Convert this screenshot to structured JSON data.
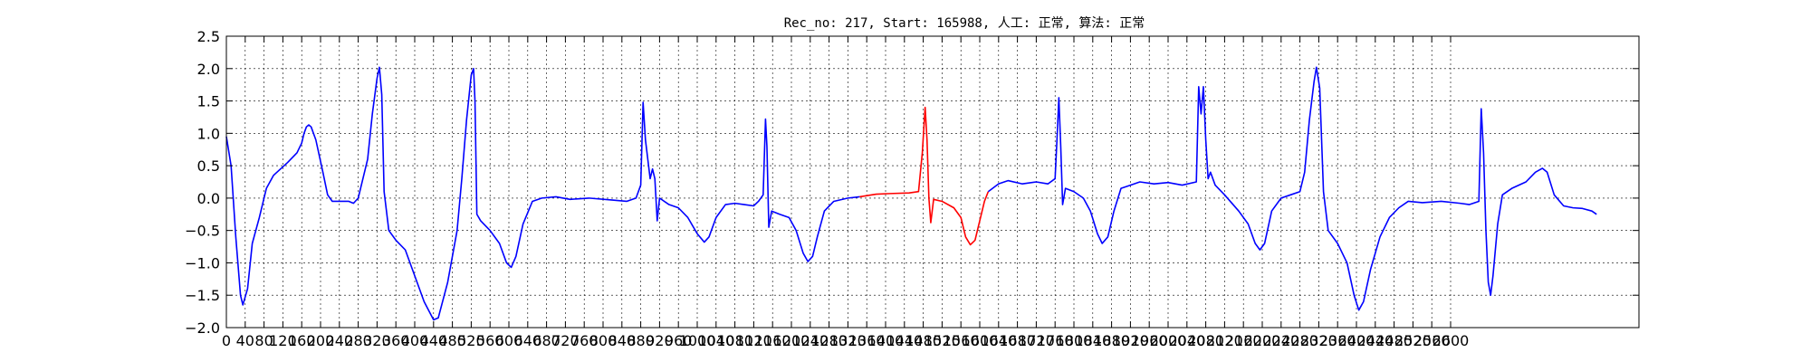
{
  "chart_data": {
    "type": "line",
    "title": "Rec_no: 217, Start: 165988, 人工: 正常, 算法: 正常",
    "xlabel": "",
    "ylabel": "",
    "xlim": [
      0,
      3000
    ],
    "ylim": [
      -2.0,
      2.5
    ],
    "grid": true,
    "y_ticks": [
      "2.5",
      "2.0",
      "1.5",
      "1.0",
      "0.5",
      "0.0",
      "−0.5",
      "−1.0",
      "−1.5",
      "−2.0"
    ],
    "x_ticks": [
      "0",
      "40",
      "80",
      "120",
      "160",
      "200",
      "240",
      "280",
      "320",
      "360",
      "400",
      "440",
      "480",
      "520",
      "560",
      "600",
      "640",
      "680",
      "720",
      "760",
      "800",
      "840",
      "880",
      "920",
      "960",
      "1000",
      "1040",
      "1080",
      "1120",
      "1160",
      "1200",
      "1240",
      "1280",
      "1320",
      "1360",
      "1400",
      "1440",
      "1480",
      "1520",
      "1560",
      "1600",
      "1640",
      "1680",
      "1720",
      "1760",
      "1800",
      "1840",
      "1880",
      "1920",
      "1960",
      "2000",
      "2040",
      "2080",
      "2120",
      "2160",
      "2200",
      "2240",
      "2280",
      "2320",
      "2360",
      "2400",
      "2440",
      "2480",
      "2520",
      "2560",
      "2600"
    ],
    "series": [
      {
        "color": "#0000ff",
        "points": [
          [
            0,
            0.95
          ],
          [
            10,
            0.5
          ],
          [
            20,
            -0.6
          ],
          [
            30,
            -1.5
          ],
          [
            35,
            -1.65
          ],
          [
            45,
            -1.4
          ],
          [
            55,
            -0.7
          ],
          [
            70,
            -0.3
          ],
          [
            85,
            0.15
          ],
          [
            100,
            0.35
          ],
          [
            130,
            0.55
          ],
          [
            150,
            0.7
          ],
          [
            160,
            0.85
          ],
          [
            165,
            1.0
          ],
          [
            170,
            1.1
          ],
          [
            175,
            1.13
          ],
          [
            180,
            1.1
          ],
          [
            190,
            0.9
          ],
          [
            205,
            0.4
          ],
          [
            215,
            0.05
          ],
          [
            225,
            -0.05
          ],
          [
            260,
            -0.05
          ],
          [
            270,
            -0.08
          ],
          [
            280,
            0.0
          ],
          [
            300,
            0.6
          ],
          [
            310,
            1.3
          ],
          [
            320,
            1.85
          ],
          [
            325,
            2.02
          ],
          [
            330,
            1.6
          ],
          [
            335,
            0.1
          ],
          [
            345,
            -0.5
          ],
          [
            360,
            -0.65
          ],
          [
            380,
            -0.8
          ],
          [
            400,
            -1.2
          ],
          [
            420,
            -1.6
          ],
          [
            440,
            -1.88
          ],
          [
            450,
            -1.85
          ],
          [
            470,
            -1.3
          ],
          [
            490,
            -0.5
          ],
          [
            500,
            0.3
          ],
          [
            510,
            1.2
          ],
          [
            520,
            1.9
          ],
          [
            525,
            2.0
          ],
          [
            528,
            1.5
          ],
          [
            532,
            -0.25
          ],
          [
            540,
            -0.35
          ],
          [
            560,
            -0.5
          ],
          [
            580,
            -0.7
          ],
          [
            595,
            -1.0
          ],
          [
            605,
            -1.07
          ],
          [
            615,
            -0.9
          ],
          [
            630,
            -0.4
          ],
          [
            650,
            -0.05
          ],
          [
            670,
            0.0
          ],
          [
            700,
            0.02
          ],
          [
            730,
            -0.02
          ],
          [
            770,
            0.0
          ],
          [
            820,
            -0.03
          ],
          [
            850,
            -0.05
          ],
          [
            870,
            0.0
          ],
          [
            880,
            0.2
          ],
          [
            885,
            1.48
          ],
          [
            890,
            0.9
          ],
          [
            900,
            0.3
          ],
          [
            905,
            0.45
          ],
          [
            910,
            0.3
          ],
          [
            915,
            -0.35
          ],
          [
            920,
            0.0
          ],
          [
            940,
            -0.1
          ],
          [
            960,
            -0.15
          ],
          [
            980,
            -0.3
          ],
          [
            1000,
            -0.55
          ],
          [
            1015,
            -0.68
          ],
          [
            1025,
            -0.6
          ],
          [
            1040,
            -0.3
          ],
          [
            1060,
            -0.1
          ],
          [
            1080,
            -0.08
          ],
          [
            1100,
            -0.1
          ],
          [
            1120,
            -0.12
          ],
          [
            1130,
            -0.05
          ],
          [
            1140,
            0.05
          ],
          [
            1145,
            1.22
          ],
          [
            1148,
            0.8
          ],
          [
            1152,
            -0.45
          ],
          [
            1158,
            -0.2
          ],
          [
            1175,
            -0.25
          ],
          [
            1195,
            -0.3
          ],
          [
            1210,
            -0.5
          ],
          [
            1225,
            -0.85
          ],
          [
            1235,
            -0.98
          ],
          [
            1245,
            -0.9
          ],
          [
            1255,
            -0.6
          ],
          [
            1270,
            -0.2
          ],
          [
            1290,
            -0.05
          ],
          [
            1320,
            0.0
          ],
          [
            1345,
            0.02
          ]
        ]
      },
      {
        "color": "#ff0000",
        "points": [
          [
            1345,
            0.02
          ],
          [
            1380,
            0.06
          ],
          [
            1410,
            0.07
          ],
          [
            1450,
            0.08
          ],
          [
            1470,
            0.1
          ],
          [
            1478,
            0.7
          ],
          [
            1484,
            1.4
          ],
          [
            1488,
            0.9
          ],
          [
            1492,
            0.0
          ],
          [
            1496,
            -0.38
          ],
          [
            1502,
            -0.02
          ],
          [
            1520,
            -0.05
          ],
          [
            1545,
            -0.15
          ],
          [
            1560,
            -0.3
          ],
          [
            1570,
            -0.6
          ],
          [
            1580,
            -0.72
          ],
          [
            1590,
            -0.65
          ],
          [
            1600,
            -0.35
          ],
          [
            1610,
            -0.05
          ],
          [
            1618,
            0.1
          ]
        ]
      },
      {
        "color": "#0000ff",
        "points": [
          [
            1618,
            0.1
          ],
          [
            1640,
            0.22
          ],
          [
            1660,
            0.27
          ],
          [
            1690,
            0.22
          ],
          [
            1720,
            0.25
          ],
          [
            1745,
            0.22
          ],
          [
            1760,
            0.3
          ],
          [
            1764,
            0.9
          ],
          [
            1768,
            1.55
          ],
          [
            1772,
            0.8
          ],
          [
            1776,
            -0.1
          ],
          [
            1782,
            0.15
          ],
          [
            1800,
            0.1
          ],
          [
            1820,
            0.0
          ],
          [
            1835,
            -0.2
          ],
          [
            1850,
            -0.55
          ],
          [
            1860,
            -0.7
          ],
          [
            1872,
            -0.6
          ],
          [
            1885,
            -0.2
          ],
          [
            1900,
            0.15
          ],
          [
            1920,
            0.2
          ],
          [
            1940,
            0.25
          ],
          [
            1970,
            0.22
          ],
          [
            2000,
            0.24
          ],
          [
            2030,
            0.2
          ],
          [
            2060,
            0.25
          ],
          [
            2065,
            1.72
          ],
          [
            2070,
            1.3
          ],
          [
            2075,
            1.72
          ],
          [
            2080,
            0.9
          ],
          [
            2085,
            0.3
          ],
          [
            2090,
            0.4
          ],
          [
            2100,
            0.2
          ],
          [
            2120,
            0.05
          ],
          [
            2150,
            -0.2
          ],
          [
            2170,
            -0.4
          ],
          [
            2185,
            -0.7
          ],
          [
            2195,
            -0.8
          ],
          [
            2205,
            -0.7
          ],
          [
            2220,
            -0.2
          ],
          [
            2240,
            0.0
          ],
          [
            2260,
            0.05
          ],
          [
            2280,
            0.1
          ],
          [
            2290,
            0.4
          ],
          [
            2300,
            1.2
          ],
          [
            2310,
            1.8
          ],
          [
            2315,
            2.02
          ],
          [
            2322,
            1.7
          ],
          [
            2330,
            0.1
          ],
          [
            2340,
            -0.5
          ],
          [
            2360,
            -0.7
          ],
          [
            2380,
            -1.0
          ],
          [
            2395,
            -1.5
          ],
          [
            2405,
            -1.73
          ],
          [
            2415,
            -1.6
          ],
          [
            2430,
            -1.1
          ],
          [
            2450,
            -0.6
          ],
          [
            2470,
            -0.3
          ],
          [
            2490,
            -0.15
          ],
          [
            2510,
            -0.05
          ],
          [
            2540,
            -0.07
          ],
          [
            2580,
            -0.05
          ],
          [
            2620,
            -0.08
          ],
          [
            2640,
            -0.1
          ],
          [
            2660,
            -0.05
          ],
          [
            2665,
            1.38
          ],
          [
            2670,
            0.7
          ],
          [
            2675,
            -0.5
          ],
          [
            2680,
            -1.3
          ],
          [
            2685,
            -1.5
          ],
          [
            2690,
            -1.2
          ],
          [
            2700,
            -0.4
          ],
          [
            2710,
            0.05
          ],
          [
            2730,
            0.15
          ],
          [
            2760,
            0.25
          ],
          [
            2780,
            0.4
          ],
          [
            2795,
            0.46
          ],
          [
            2805,
            0.4
          ],
          [
            2820,
            0.05
          ],
          [
            2840,
            -0.12
          ],
          [
            2860,
            -0.15
          ],
          [
            2880,
            -0.16
          ],
          [
            2900,
            -0.2
          ],
          [
            2910,
            -0.25
          ]
        ]
      }
    ]
  }
}
